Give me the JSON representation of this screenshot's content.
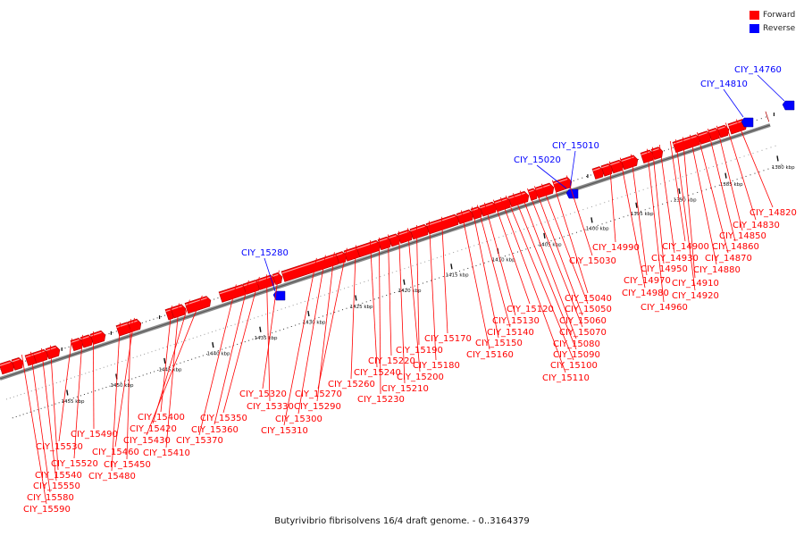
{
  "legend": {
    "forward": {
      "label": "Forward",
      "color": "#ff0000"
    },
    "reverse": {
      "label": "Reverse",
      "color": "#0000ff"
    }
  },
  "caption": "Butyrivibrio fibrisolvens 16/4 draft genome. - 0..3164379",
  "scale": {
    "tick_labels": [
      "1380 kbp",
      "1385 kbp",
      "1390 kbp",
      "1395 kbp",
      "1400 kbp",
      "1405 kbp",
      "1410 kbp",
      "1415 kbp",
      "1420 kbp",
      "1425 kbp",
      "1430 kbp",
      "1435 kbp",
      "1440 kbp",
      "1445 kbp",
      "1450 kbp",
      "1455 kbp"
    ]
  },
  "forward_genes": [
    "CIY_14820",
    "CIY_14830",
    "CIY_14850",
    "CIY_14860",
    "CIY_14870",
    "CIY_14880",
    "CIY_14900",
    "CIY_14910",
    "CIY_14920",
    "CIY_14930",
    "CIY_14950",
    "CIY_14960",
    "CIY_14970",
    "CIY_14980",
    "CIY_14990",
    "CIY_15030",
    "CIY_15040",
    "CIY_15050",
    "CIY_15060",
    "CIY_15070",
    "CIY_15080",
    "CIY_15090",
    "CIY_15100",
    "CIY_15110",
    "CIY_15120",
    "CIY_15130",
    "CIY_15140",
    "CIY_15150",
    "CIY_15160",
    "CIY_15170",
    "CIY_15180",
    "CIY_15190",
    "CIY_15200",
    "CIY_15210",
    "CIY_15220",
    "CIY_15230",
    "CIY_15240",
    "CIY_15260",
    "CIY_15270",
    "CIY_15290",
    "CIY_15300",
    "CIY_15310",
    "CIY_15320",
    "CIY_15330",
    "CIY_15350",
    "CIY_15360",
    "CIY_15370",
    "CIY_15400",
    "CIY_15410",
    "CIY_15420",
    "CIY_15430",
    "CIY_15450",
    "CIY_15460",
    "CIY_15480",
    "CIY_15490",
    "CIY_15520",
    "CIY_15530",
    "CIY_15540",
    "CIY_15550",
    "CIY_15580",
    "CIY_15590"
  ],
  "reverse_genes": [
    "CIY_14760",
    "CIY_14810",
    "CIY_15010",
    "CIY_15020",
    "CIY_15280"
  ]
}
